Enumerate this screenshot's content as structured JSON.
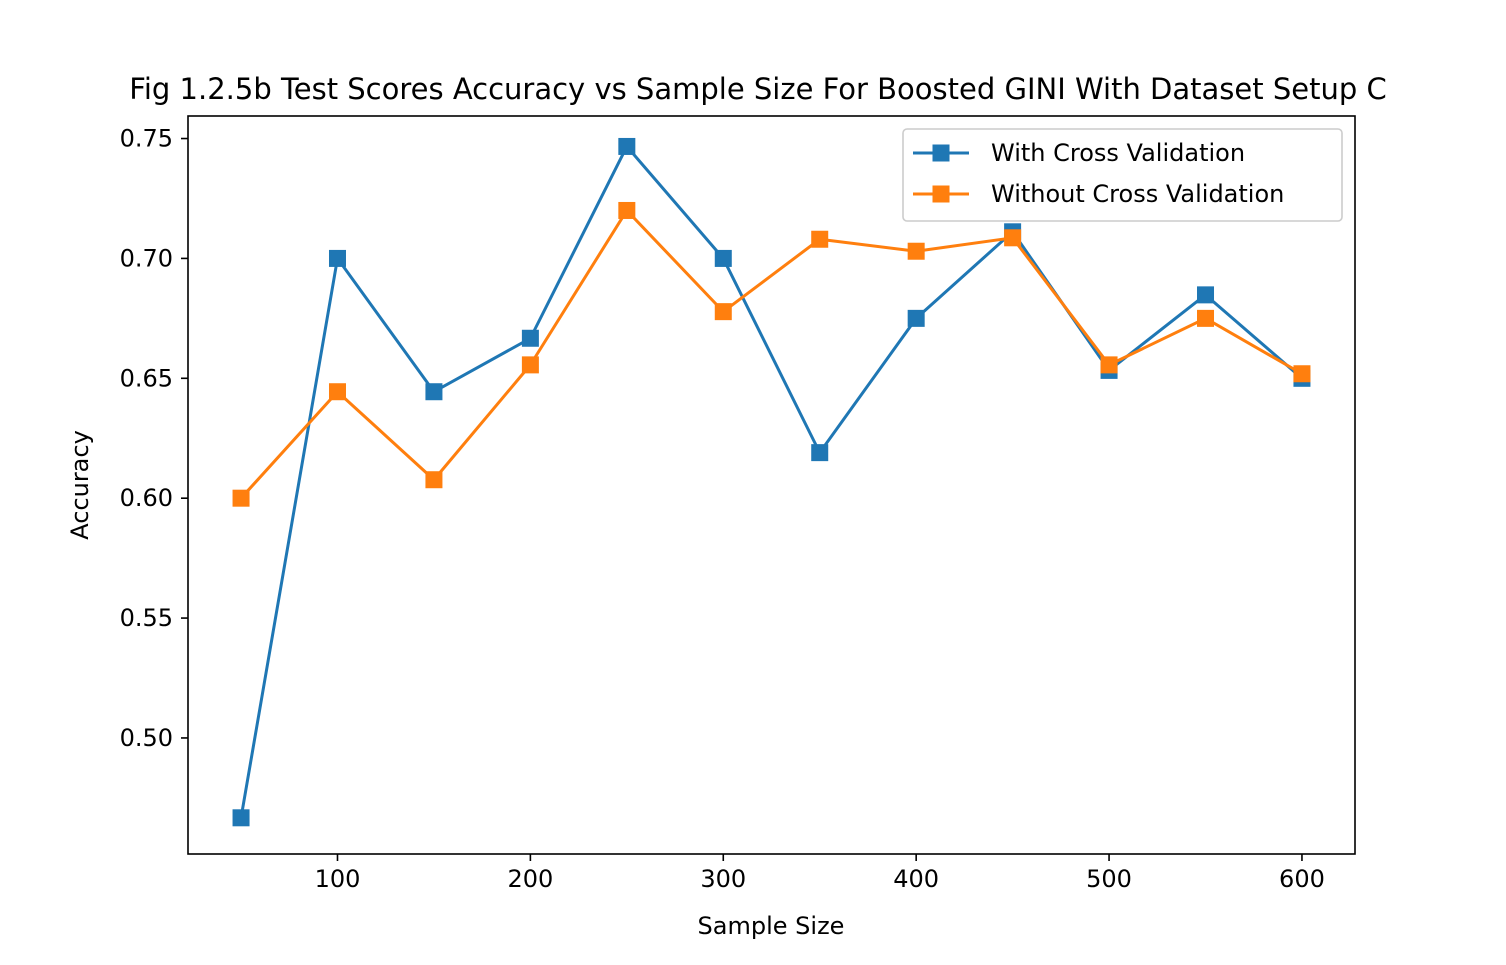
{
  "chart_data": {
    "type": "line",
    "title": "Fig 1.2.5b Test Scores Accuracy vs Sample Size For Boosted GINI With Dataset Setup C",
    "xlabel": "Sample Size",
    "ylabel": "Accuracy",
    "x": [
      50,
      100,
      150,
      200,
      250,
      300,
      350,
      400,
      450,
      500,
      550,
      600
    ],
    "xlim": [
      22.5,
      627.5
    ],
    "ylim": [
      0.4516,
      0.7594
    ],
    "xticks": [
      100,
      200,
      300,
      400,
      500,
      600
    ],
    "xtick_labels": [
      "100",
      "200",
      "300",
      "400",
      "500",
      "600"
    ],
    "yticks": [
      0.5,
      0.55,
      0.6,
      0.65,
      0.7,
      0.75
    ],
    "ytick_labels": [
      "0.50",
      "0.55",
      "0.60",
      "0.65",
      "0.70",
      "0.75"
    ],
    "grid": false,
    "legend_position": "top-right",
    "series": [
      {
        "name": "With Cross Validation",
        "color": "#1f77b4",
        "marker": "square",
        "values": [
          0.4667,
          0.7,
          0.6444,
          0.6667,
          0.7467,
          0.7,
          0.619,
          0.675,
          0.7111,
          0.6533,
          0.6848,
          0.65
        ]
      },
      {
        "name": "Without Cross Validation",
        "color": "#ff7f0e",
        "marker": "square",
        "values": [
          0.6,
          0.6444,
          0.6077,
          0.6556,
          0.72,
          0.6778,
          0.708,
          0.703,
          0.7086,
          0.6556,
          0.675,
          0.6519
        ]
      }
    ]
  }
}
